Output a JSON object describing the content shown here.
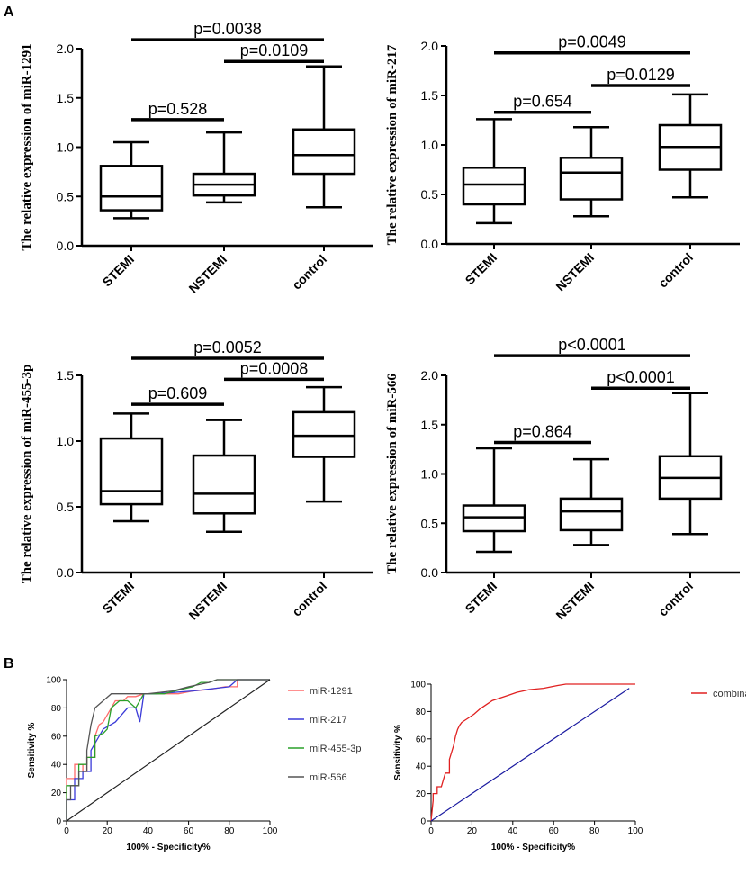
{
  "panel_labels": {
    "a": "A",
    "b": "B"
  },
  "chart_data": [
    {
      "type": "box",
      "ylabel": "The relative expression of miR-1291",
      "ylim": [
        0,
        2.0
      ],
      "yticks": [
        "0.0",
        "0.5",
        "1.0",
        "1.5",
        "2.0"
      ],
      "categories": [
        "STEMI",
        "NSTEMI",
        "control"
      ],
      "boxes": [
        {
          "min": 0.28,
          "q1": 0.36,
          "median": 0.5,
          "q3": 0.81,
          "max": 1.05
        },
        {
          "min": 0.44,
          "q1": 0.51,
          "median": 0.62,
          "q3": 0.73,
          "max": 1.15
        },
        {
          "min": 0.39,
          "q1": 0.73,
          "median": 0.92,
          "q3": 1.18,
          "max": 1.82
        }
      ],
      "comparisons": [
        {
          "label": "p=0.0038",
          "from": 0,
          "to": 2,
          "level": 2.09
        },
        {
          "label": "p=0.0109",
          "from": 1,
          "to": 2,
          "level": 1.87
        },
        {
          "label": "p=0.528",
          "from": 0,
          "to": 1,
          "level": 1.28
        }
      ]
    },
    {
      "type": "box",
      "ylabel": "The relative expression of miR-217",
      "ylim": [
        0,
        2.0
      ],
      "yticks": [
        "0.0",
        "0.5",
        "1.0",
        "1.5",
        "2.0"
      ],
      "categories": [
        "STEMI",
        "NSTEMI",
        "control"
      ],
      "boxes": [
        {
          "min": 0.21,
          "q1": 0.4,
          "median": 0.6,
          "q3": 0.77,
          "max": 1.26
        },
        {
          "min": 0.28,
          "q1": 0.45,
          "median": 0.72,
          "q3": 0.87,
          "max": 1.18
        },
        {
          "min": 0.47,
          "q1": 0.75,
          "median": 0.98,
          "q3": 1.2,
          "max": 1.51
        }
      ],
      "comparisons": [
        {
          "label": "p=0.0049",
          "from": 0,
          "to": 2,
          "level": 1.93
        },
        {
          "label": "p=0.0129",
          "from": 1,
          "to": 2,
          "level": 1.6
        },
        {
          "label": "p=0.654",
          "from": 0,
          "to": 1,
          "level": 1.33
        }
      ]
    },
    {
      "type": "box",
      "ylabel": "The relative expression of miR-455-3p",
      "ylim": [
        0,
        1.5
      ],
      "yticks": [
        "0.0",
        "0.5",
        "1.0",
        "1.5"
      ],
      "categories": [
        "STEMI",
        "NSTEMI",
        "control"
      ],
      "boxes": [
        {
          "min": 0.39,
          "q1": 0.52,
          "median": 0.62,
          "q3": 1.02,
          "max": 1.21
        },
        {
          "min": 0.31,
          "q1": 0.45,
          "median": 0.6,
          "q3": 0.89,
          "max": 1.16
        },
        {
          "min": 0.54,
          "q1": 0.88,
          "median": 1.04,
          "q3": 1.22,
          "max": 1.41
        }
      ],
      "comparisons": [
        {
          "label": "p=0.0052",
          "from": 0,
          "to": 2,
          "level": 1.63
        },
        {
          "label": "p=0.0008",
          "from": 1,
          "to": 2,
          "level": 1.47
        },
        {
          "label": "p=0.609",
          "from": 0,
          "to": 1,
          "level": 1.28
        }
      ]
    },
    {
      "type": "box",
      "ylabel": "The relative expression of miR-566",
      "ylim": [
        0,
        2.0
      ],
      "yticks": [
        "0.0",
        "0.5",
        "1.0",
        "1.5",
        "2.0"
      ],
      "categories": [
        "STEMI",
        "NSTEMI",
        "control"
      ],
      "boxes": [
        {
          "min": 0.21,
          "q1": 0.42,
          "median": 0.56,
          "q3": 0.68,
          "max": 1.26
        },
        {
          "min": 0.28,
          "q1": 0.43,
          "median": 0.62,
          "q3": 0.75,
          "max": 1.15
        },
        {
          "min": 0.39,
          "q1": 0.75,
          "median": 0.96,
          "q3": 1.18,
          "max": 1.82
        }
      ],
      "comparisons": [
        {
          "label": "p<0.0001",
          "from": 0,
          "to": 2,
          "level": 2.2
        },
        {
          "label": "p<0.0001",
          "from": 1,
          "to": 2,
          "level": 1.87
        },
        {
          "label": "p=0.864",
          "from": 0,
          "to": 1,
          "level": 1.32
        }
      ]
    },
    {
      "type": "line",
      "subtype": "roc",
      "xlabel": "100% - Specificity%",
      "ylabel": "Sensitivity %",
      "xlim": [
        0,
        100
      ],
      "ylim": [
        0,
        100
      ],
      "xticks": [
        "0",
        "20",
        "40",
        "60",
        "80",
        "100"
      ],
      "yticks": [
        "0",
        "20",
        "40",
        "60",
        "80",
        "100"
      ],
      "legend_position": "right",
      "series": [
        {
          "name": "miR-1291",
          "color": "#ff6b6b",
          "x": [
            0,
            0,
            4,
            4,
            8,
            8,
            10,
            10,
            14,
            14,
            16,
            18,
            22,
            24,
            28,
            30,
            34,
            38,
            55,
            62,
            70,
            78,
            84,
            84,
            100
          ],
          "y": [
            0,
            30,
            30,
            40,
            40,
            35,
            35,
            45,
            45,
            60,
            68,
            70,
            80,
            85,
            85,
            88,
            88,
            90,
            90,
            92,
            93,
            95,
            95,
            100,
            100
          ]
        },
        {
          "name": "miR-217",
          "color": "#3a3ad8",
          "x": [
            0,
            0,
            4,
            4,
            8,
            8,
            12,
            12,
            16,
            18,
            24,
            30,
            34,
            36,
            38,
            40,
            44,
            62,
            80,
            84,
            100
          ],
          "y": [
            0,
            15,
            15,
            30,
            30,
            35,
            35,
            50,
            60,
            65,
            70,
            80,
            80,
            70,
            90,
            90,
            90,
            92,
            95,
            100,
            100
          ]
        },
        {
          "name": "miR-455-3p",
          "color": "#2aa02a",
          "x": [
            0,
            0,
            6,
            6,
            10,
            10,
            14,
            14,
            18,
            20,
            22,
            26,
            30,
            34,
            38,
            42,
            48,
            56,
            62,
            66,
            70,
            74,
            100
          ],
          "y": [
            0,
            25,
            25,
            40,
            40,
            45,
            45,
            60,
            62,
            65,
            80,
            85,
            85,
            80,
            90,
            90,
            90,
            93,
            95,
            98,
            98,
            100,
            100
          ]
        },
        {
          "name": "miR-566",
          "color": "#555555",
          "x": [
            0,
            0,
            2,
            2,
            6,
            6,
            10,
            10,
            12,
            14,
            18,
            22,
            30,
            40,
            52,
            60,
            70,
            74,
            100
          ],
          "y": [
            0,
            15,
            15,
            25,
            25,
            35,
            35,
            50,
            68,
            80,
            85,
            90,
            90,
            90,
            92,
            95,
            98,
            100,
            100
          ]
        },
        {
          "name": "reference",
          "color": "#222222",
          "x": [
            0,
            100
          ],
          "y": [
            0,
            100
          ],
          "legend": false
        }
      ]
    },
    {
      "type": "line",
      "subtype": "roc",
      "xlabel": "100% - Specificity%",
      "ylabel": "Sensitivity %",
      "xlim": [
        0,
        100
      ],
      "ylim": [
        0,
        100
      ],
      "xticks": [
        "0",
        "20",
        "40",
        "60",
        "80",
        "100"
      ],
      "yticks": [
        "0",
        "20",
        "40",
        "60",
        "80",
        "100"
      ],
      "legend_position": "right",
      "series": [
        {
          "name": "combination",
          "color": "#e02020",
          "x": [
            0,
            1,
            1,
            3,
            3,
            5,
            6,
            7,
            9,
            9,
            11,
            12,
            13,
            14,
            15,
            16,
            18,
            21,
            24,
            27,
            30,
            34,
            38,
            42,
            48,
            55,
            62,
            66,
            100
          ],
          "y": [
            0,
            15,
            20,
            20,
            25,
            25,
            30,
            35,
            35,
            45,
            55,
            62,
            67,
            70,
            72,
            73,
            75,
            78,
            82,
            85,
            88,
            90,
            92,
            94,
            96,
            97,
            99,
            100,
            100
          ]
        },
        {
          "name": "reference",
          "color": "#1a1aa0",
          "x": [
            0,
            97
          ],
          "y": [
            0,
            97
          ],
          "legend": false
        }
      ]
    }
  ]
}
